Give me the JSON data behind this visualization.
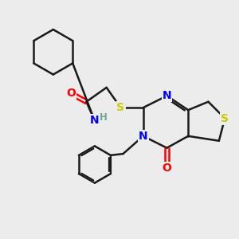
{
  "background_color": "#ececec",
  "bond_color": "#1a1a1a",
  "atom_colors": {
    "N": "#0000ff",
    "O": "#ff0000",
    "S": "#cccc00",
    "H": "#6aaa8a",
    "C": "#1a1a1a"
  },
  "bond_width": 1.8,
  "figsize": [
    3.0,
    3.0
  ],
  "dpi": 100
}
